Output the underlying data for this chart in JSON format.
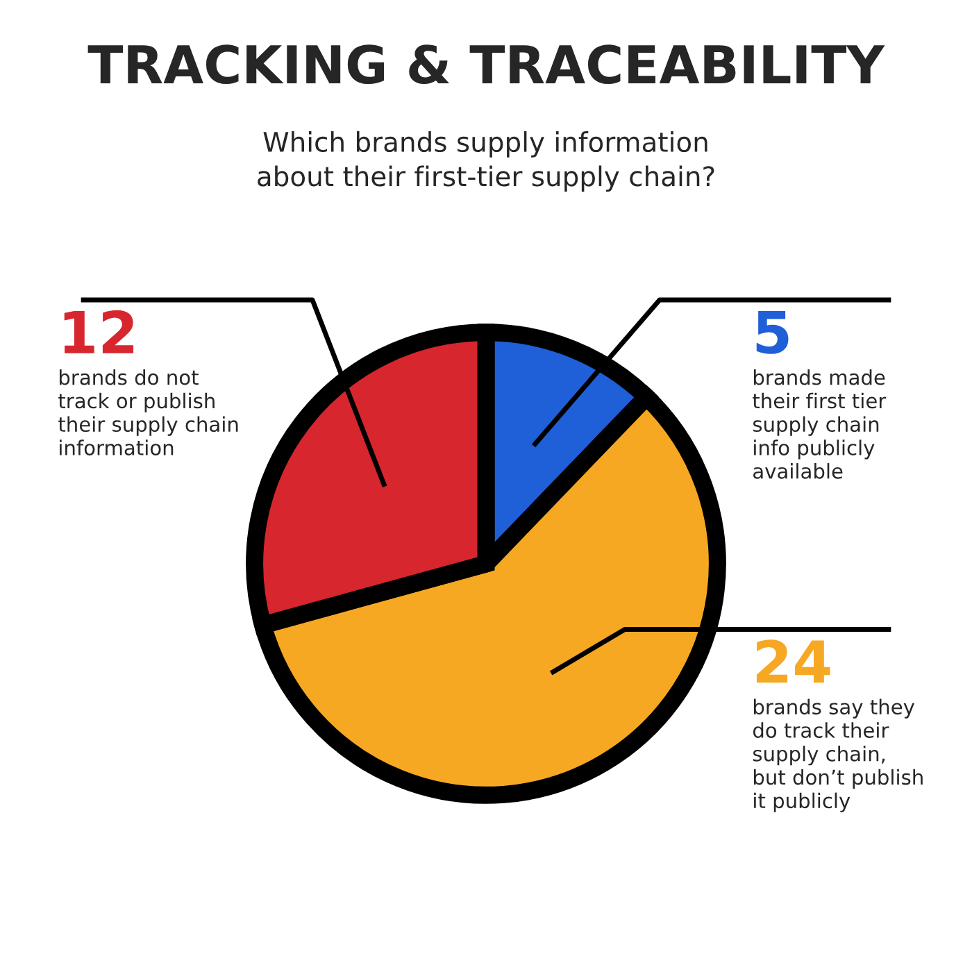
{
  "chart_data": {
    "type": "pie",
    "title": "TRACKING & TRACEABILITY",
    "subtitle": "Which brands supply information\nabout their first-tier supply chain?",
    "categories": [
      "brands made\ntheir first tier\nsupply chain\ninfo publicly\navailable",
      "brands say they\ndo track their\nsupply chain,\nbut don’t publish\nit publicly",
      "brands do not\ntrack or publish\ntheir supply chain\ninformation"
    ],
    "values": [
      5,
      24,
      12
    ],
    "colors": [
      "#1f5fd8",
      "#f7a823",
      "#d7262e"
    ],
    "data_labels": true
  }
}
